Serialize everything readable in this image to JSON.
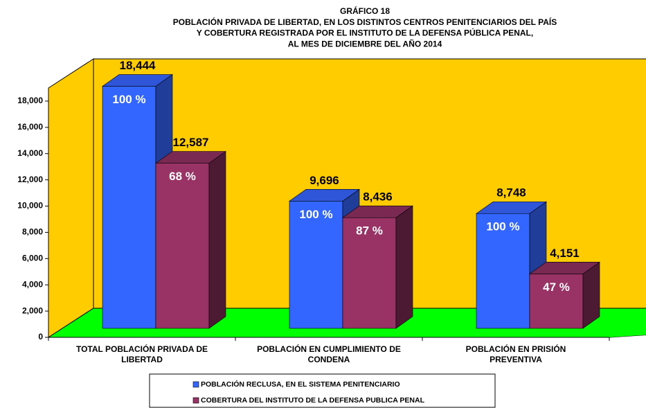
{
  "chart_data": {
    "type": "bar3d",
    "title": [
      "GRÁFICO 18",
      "POBLACIÓN PRIVADA DE LIBERTAD, EN LOS DISTINTOS CENTROS PENITENCIARIOS DEL PAÍS",
      "Y COBERTURA REGISTRADA POR EL INSTITUTO DE LA DEFENSA PÚBLICA PENAL,",
      "AL MES DE DICIEMBRE DEL AÑO 2014"
    ],
    "categories": [
      [
        "TOTAL POBLACIÓN PRIVADA DE",
        "LIBERTAD"
      ],
      [
        "POBLACIÓN EN CUMPLIMIENTO DE",
        "CONDENA"
      ],
      [
        "POBLACIÓN EN PRISIÓN",
        "PREVENTIVA"
      ]
    ],
    "series": [
      {
        "name": "POBLACIÓN RECLUSA, EN EL SISTEMA PENITENCIARIO",
        "color": "#3366ff",
        "side_color": "#1f3d99",
        "top_color": "#2f55d8",
        "values": [
          18444,
          9696,
          8748
        ],
        "value_labels": [
          "18,444",
          "9,696",
          "8,748"
        ],
        "shares": [
          100,
          100,
          100
        ],
        "share_labels": [
          "100 %",
          "100 %",
          "100 %"
        ]
      },
      {
        "name": "COBERTURA DEL INSTITUTO DE LA DEFENSA PUBLICA PENAL",
        "color": "#993366",
        "side_color": "#4d1a33",
        "top_color": "#7a2952",
        "values": [
          12587,
          8436,
          4151
        ],
        "value_labels": [
          "12,587",
          "8,436",
          "4,151"
        ],
        "shares": [
          68,
          87,
          47
        ],
        "share_labels": [
          "68 %",
          "87 %",
          "47 %"
        ]
      }
    ],
    "ylim": [
      0,
      19000
    ],
    "yticks": [
      0,
      {
        "value": 2000,
        "label": "2,000"
      },
      {
        "value": 4000,
        "label": "4,000"
      },
      {
        "value": 6000,
        "label": "6,000"
      },
      {
        "value": 8000,
        "label": "8,000"
      },
      {
        "value": 10000,
        "label": "10,000"
      },
      {
        "value": 12000,
        "label": "12,000"
      },
      {
        "value": 14000,
        "label": "14,000"
      },
      {
        "value": 16000,
        "label": "16,000"
      },
      {
        "value": 18000,
        "label": "18,000"
      }
    ],
    "wall_color": "#ffcc00",
    "floor_color": "#00ff00"
  }
}
